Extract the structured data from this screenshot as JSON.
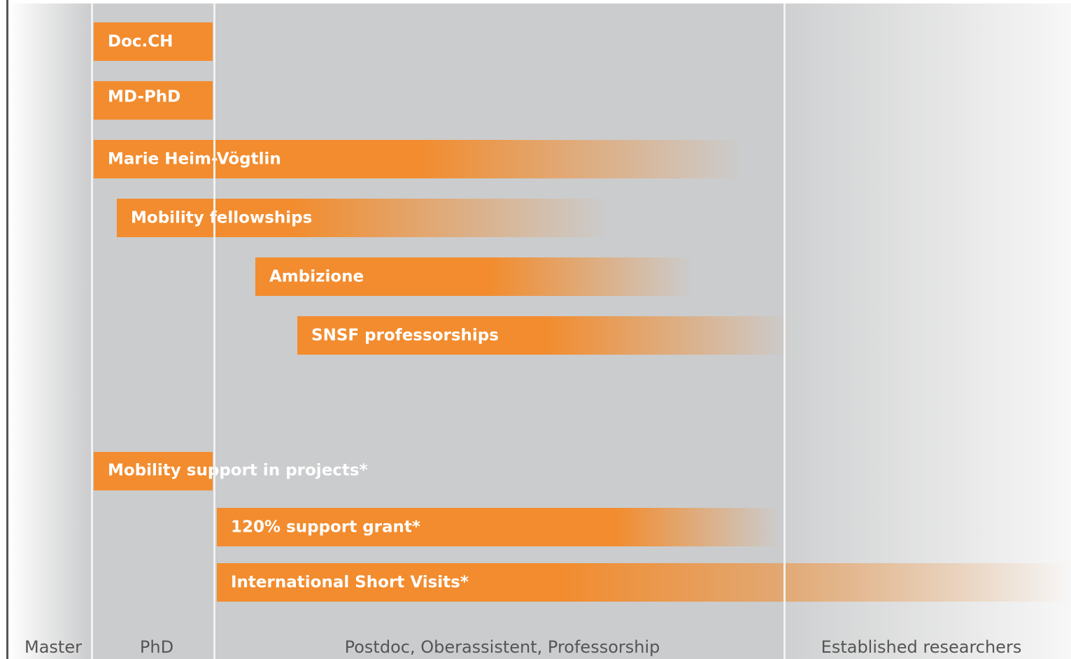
{
  "stages": [
    "Master",
    "PhD",
    "Postdoc, Oberassistent, Professorship",
    "Established researchers"
  ],
  "programs": [
    "Doc.CH",
    "MD-PhD",
    "Marie Heim-Vögtlin",
    "Mobility fellowships",
    "Ambizione",
    "SNSF professorships",
    "Mobility support in projects*",
    "120% support grant*",
    "International Short Visits*"
  ]
}
